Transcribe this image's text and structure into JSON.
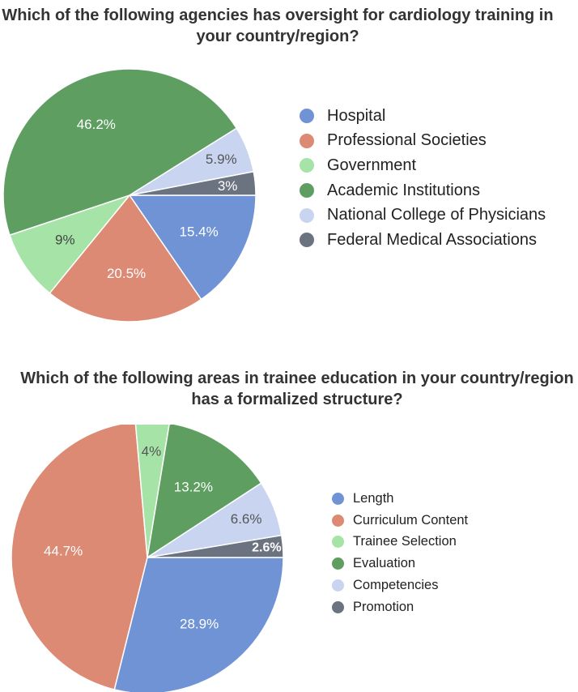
{
  "chart_data": [
    {
      "type": "pie",
      "title": "Which of the following agencies has oversight for cardiology training in your country/region?",
      "categories": [
        "Hospital",
        "Professional Societies",
        "Government",
        "Academic Institutions",
        "National College of Physicians",
        "Federal Medical Associations"
      ],
      "values": [
        15.4,
        20.5,
        9,
        46.2,
        5.9,
        3
      ],
      "labels": [
        "15.4%",
        "20.5%",
        "9%",
        "46.2%",
        "5.9%",
        "3%"
      ],
      "colors": [
        "#7093d6",
        "#dc8a74",
        "#a6e3a6",
        "#5e9e61",
        "#c8d4f0",
        "#6b7280"
      ],
      "label_colors": [
        "#ffffff",
        "#ffffff",
        "#444444",
        "#ffffff",
        "#555555",
        "#ffffff"
      ],
      "legend_position": "right"
    },
    {
      "type": "pie",
      "title": "Which of the following areas in trainee education in your country/region has a formalized structure?",
      "categories": [
        "Length",
        "Curriculum Content",
        "Trainee Selection",
        "Evaluation",
        "Competencies",
        "Promotion"
      ],
      "values": [
        28.9,
        44.7,
        4,
        13.2,
        6.6,
        2.6
      ],
      "labels": [
        "28.9%",
        "44.7%",
        "4%",
        "13.2%",
        "6.6%",
        "2.6%"
      ],
      "colors": [
        "#7093d6",
        "#dc8a74",
        "#a6e3a6",
        "#5e9e61",
        "#c8d4f0",
        "#6b7280"
      ],
      "label_colors": [
        "#ffffff",
        "#ffffff",
        "#555555",
        "#ffffff",
        "#555555",
        "#ffffff"
      ],
      "legend_position": "right"
    }
  ]
}
